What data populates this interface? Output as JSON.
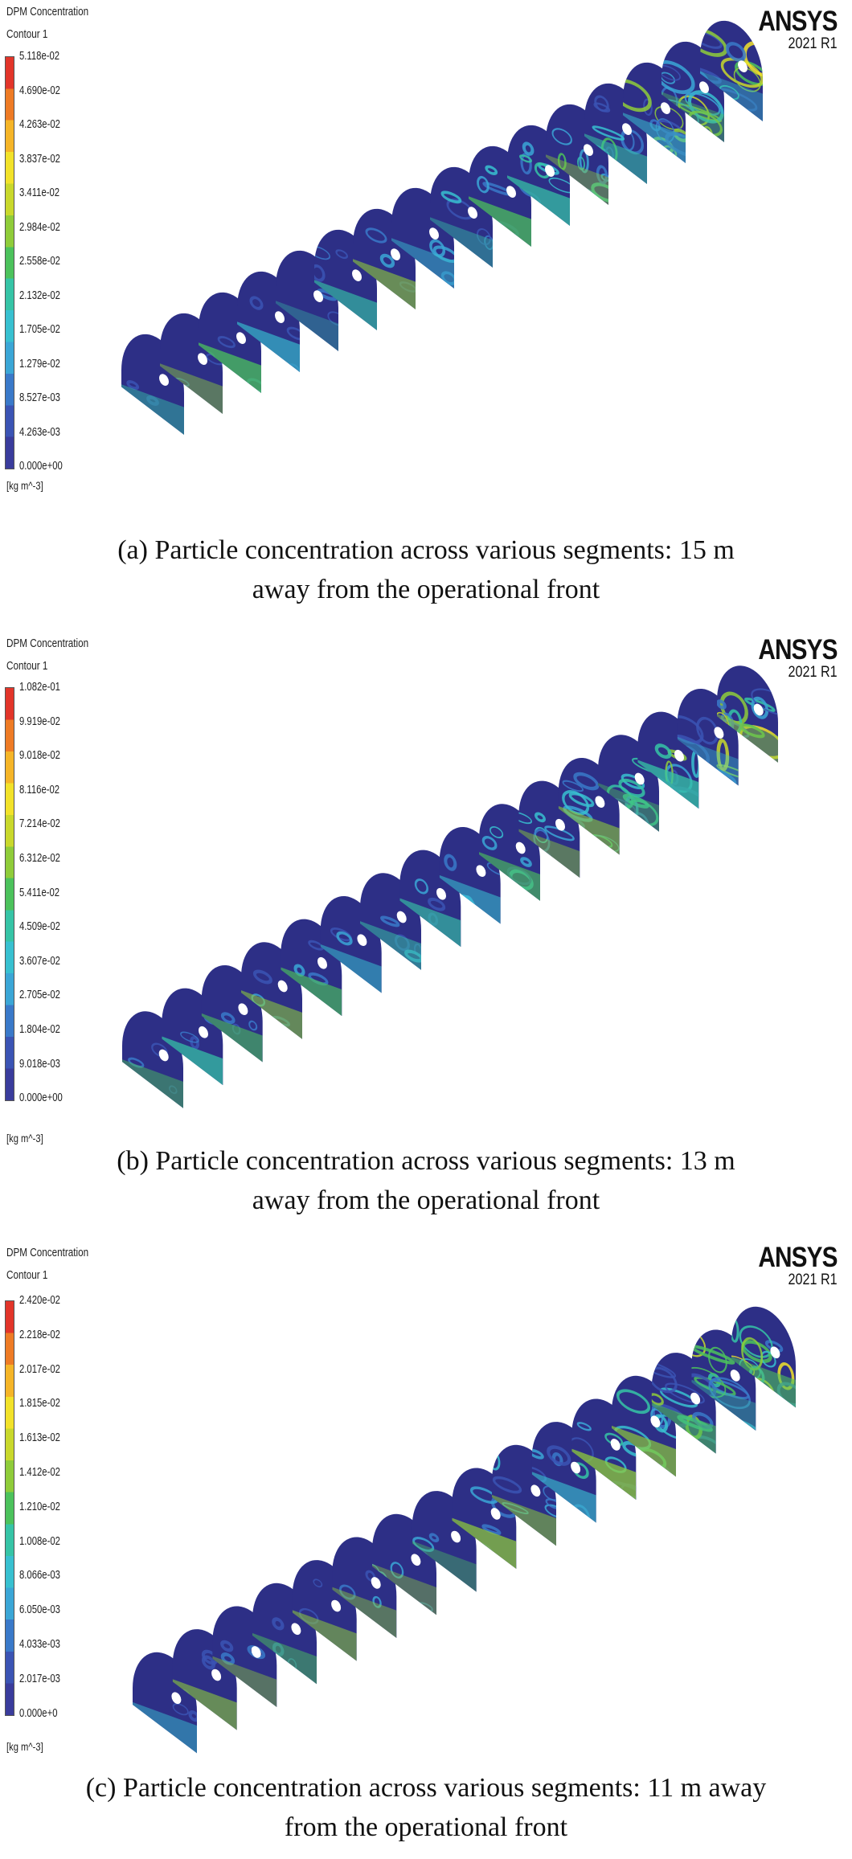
{
  "brand": {
    "name": "ANSYS",
    "version": "2021 R1"
  },
  "colormap": [
    "#3a3c9c",
    "#3b54b4",
    "#3a79c9",
    "#3ba6d6",
    "#38c0d0",
    "#36c4a6",
    "#4cc25c",
    "#8fcc3a",
    "#c9d82c",
    "#f2e22a",
    "#f5b528",
    "#ee7b25",
    "#e2352a"
  ],
  "panels": [
    {
      "legend": {
        "title_line1": "DPM Concentration",
        "title_line2": "Contour 1",
        "labels": [
          "5.118e-02",
          "4.690e-02",
          "4.263e-02",
          "3.837e-02",
          "3.411e-02",
          "2.984e-02",
          "2.558e-02",
          "2.132e-02",
          "1.705e-02",
          "1.279e-02",
          "8.527e-03",
          "4.263e-03",
          "0.000e+00"
        ],
        "unit": "[kg m^-3]"
      },
      "caption_line1": "(a) Particle concentration across various segments: 15 m",
      "caption_line2": "away from the operational front",
      "segments": 16
    },
    {
      "legend": {
        "title_line1": "DPM Concentration",
        "title_line2": "Contour 1",
        "labels": [
          "1.082e-01",
          "9.919e-02",
          "9.018e-02",
          "8.116e-02",
          "7.214e-02",
          "6.312e-02",
          "5.411e-02",
          "4.509e-02",
          "3.607e-02",
          "2.705e-02",
          "1.804e-02",
          "9.018e-03",
          "0.000e+00"
        ],
        "unit": "[kg m^-3]"
      },
      "caption_line1": "(b) Particle concentration across various segments: 13 m",
      "caption_line2": "away from the operational front",
      "segments": 16
    },
    {
      "legend": {
        "title_line1": "DPM Concentration",
        "title_line2": "Contour 1",
        "labels": [
          "2.420e-02",
          "2.218e-02",
          "2.017e-02",
          "1.815e-02",
          "1.613e-02",
          "1.412e-02",
          "1.210e-02",
          "1.008e-02",
          "8.066e-03",
          "6.050e-03",
          "4.033e-03",
          "2.017e-03",
          "0.000e+0"
        ],
        "unit": "[kg m^-3]"
      },
      "caption_line1": "(c) Particle concentration across various segments: 11 m away",
      "caption_line2": "from the operational front",
      "segments": 16
    }
  ]
}
